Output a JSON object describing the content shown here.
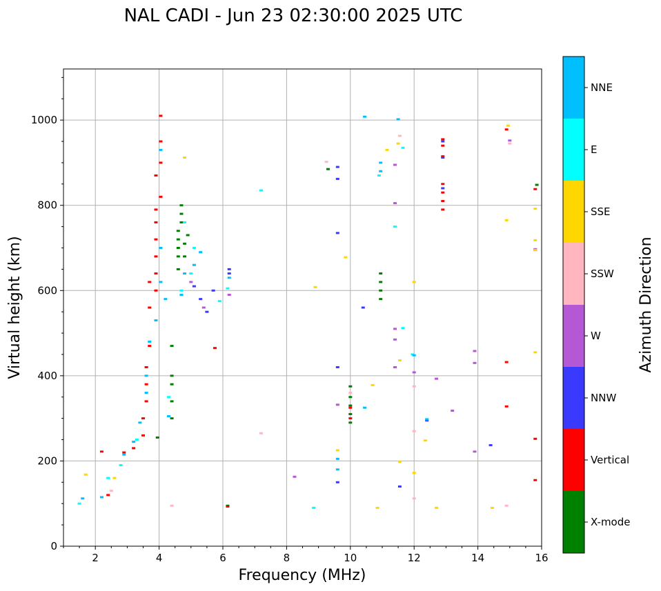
{
  "chart_data": {
    "type": "scatter",
    "title": "NAL CADI - Jun 23 02:30:00 2025 UTC",
    "xlabel": "Frequency (MHz)",
    "ylabel": "Virtual height (km)",
    "xlim": [
      1,
      16
    ],
    "ylim": [
      0,
      1120
    ],
    "x_ticks": [
      2,
      4,
      6,
      8,
      10,
      12,
      14,
      16
    ],
    "y_ticks": [
      0,
      200,
      400,
      600,
      800,
      1000
    ],
    "grid": true,
    "colorbar": {
      "title": "Azimuth Direction",
      "categories": [
        {
          "name": "X-mode",
          "color": "#008000"
        },
        {
          "name": "Vertical",
          "color": "#ff0000"
        },
        {
          "name": "NNW",
          "color": "#3a3aff"
        },
        {
          "name": "W",
          "color": "#b558d6"
        },
        {
          "name": "SSW",
          "color": "#ffb6c1"
        },
        {
          "name": "SSE",
          "color": "#ffd700"
        },
        {
          "name": "E",
          "color": "#00ffff"
        },
        {
          "name": "NNE",
          "color": "#00bfff"
        }
      ]
    },
    "series": [
      {
        "name": "X-mode",
        "points": [
          [
            3.95,
            255
          ],
          [
            4.4,
            300
          ],
          [
            4.4,
            340
          ],
          [
            4.4,
            380
          ],
          [
            4.4,
            400
          ],
          [
            4.4,
            470
          ],
          [
            4.6,
            650
          ],
          [
            4.6,
            680
          ],
          [
            4.6,
            700
          ],
          [
            4.6,
            720
          ],
          [
            4.6,
            740
          ],
          [
            4.7,
            760
          ],
          [
            4.7,
            780
          ],
          [
            4.7,
            800
          ],
          [
            4.8,
            680
          ],
          [
            4.8,
            710
          ],
          [
            4.9,
            730
          ],
          [
            10.0,
            290
          ],
          [
            10.0,
            310
          ],
          [
            10.0,
            330
          ],
          [
            10.0,
            350
          ],
          [
            10.0,
            375
          ],
          [
            10.95,
            580
          ],
          [
            10.95,
            600
          ],
          [
            10.95,
            620
          ],
          [
            10.95,
            640
          ],
          [
            9.3,
            885
          ],
          [
            15.85,
            848
          ],
          [
            6.15,
            95
          ]
        ]
      },
      {
        "name": "Vertical",
        "points": [
          [
            2.4,
            120
          ],
          [
            2.2,
            222
          ],
          [
            2.9,
            220
          ],
          [
            3.2,
            230
          ],
          [
            3.5,
            260
          ],
          [
            3.5,
            300
          ],
          [
            3.6,
            340
          ],
          [
            3.6,
            380
          ],
          [
            3.6,
            420
          ],
          [
            3.7,
            470
          ],
          [
            3.7,
            560
          ],
          [
            3.7,
            620
          ],
          [
            3.9,
            600
          ],
          [
            3.9,
            640
          ],
          [
            3.9,
            680
          ],
          [
            3.9,
            720
          ],
          [
            3.9,
            760
          ],
          [
            3.9,
            790
          ],
          [
            3.9,
            870
          ],
          [
            4.05,
            820
          ],
          [
            4.05,
            900
          ],
          [
            4.05,
            950
          ],
          [
            4.05,
            1010
          ],
          [
            5.75,
            465
          ],
          [
            10.0,
            300
          ],
          [
            10.0,
            325
          ],
          [
            12.9,
            790
          ],
          [
            12.9,
            810
          ],
          [
            12.9,
            830
          ],
          [
            12.9,
            850
          ],
          [
            12.9,
            915
          ],
          [
            12.9,
            940
          ],
          [
            12.9,
            955
          ],
          [
            14.9,
            432
          ],
          [
            14.9,
            328
          ],
          [
            14.9,
            978
          ],
          [
            15.8,
            252
          ],
          [
            15.8,
            155
          ],
          [
            15.8,
            838
          ],
          [
            15.8,
            695
          ],
          [
            6.15,
            93
          ]
        ]
      },
      {
        "name": "NNW",
        "points": [
          [
            5.1,
            610
          ],
          [
            5.3,
            580
          ],
          [
            5.5,
            550
          ],
          [
            5.7,
            600
          ],
          [
            6.2,
            640
          ],
          [
            6.2,
            650
          ],
          [
            9.6,
            890
          ],
          [
            9.6,
            862
          ],
          [
            9.6,
            735
          ],
          [
            9.6,
            420
          ],
          [
            9.6,
            150
          ],
          [
            10.4,
            560
          ],
          [
            12.4,
            295
          ],
          [
            12.9,
            950
          ],
          [
            12.9,
            912
          ],
          [
            12.9,
            840
          ],
          [
            14.4,
            237
          ],
          [
            11.55,
            140
          ]
        ]
      },
      {
        "name": "W",
        "points": [
          [
            5.0,
            620
          ],
          [
            5.4,
            560
          ],
          [
            6.2,
            590
          ],
          [
            9.6,
            332
          ],
          [
            11.4,
            485
          ],
          [
            11.4,
            420
          ],
          [
            11.4,
            510
          ],
          [
            12.0,
            408
          ],
          [
            12.7,
            393
          ],
          [
            13.2,
            318
          ],
          [
            13.9,
            458
          ],
          [
            13.9,
            430
          ],
          [
            13.9,
            222
          ],
          [
            15.0,
            952
          ],
          [
            8.25,
            163
          ],
          [
            11.4,
            895
          ],
          [
            11.4,
            805
          ],
          [
            15.8,
            697
          ]
        ]
      },
      {
        "name": "SSW",
        "points": [
          [
            2.5,
            130
          ],
          [
            4.4,
            95
          ],
          [
            9.25,
            902
          ],
          [
            10.0,
            360
          ],
          [
            11.55,
            963
          ],
          [
            12.0,
            270
          ],
          [
            12.0,
            375
          ],
          [
            12.0,
            112
          ],
          [
            14.9,
            95
          ],
          [
            15.0,
            945
          ],
          [
            7.2,
            265
          ]
        ]
      },
      {
        "name": "SSE",
        "points": [
          [
            1.7,
            168
          ],
          [
            2.6,
            160
          ],
          [
            4.8,
            912
          ],
          [
            8.9,
            608
          ],
          [
            9.85,
            678
          ],
          [
            9.6,
            225
          ],
          [
            10.7,
            378
          ],
          [
            10.85,
            90
          ],
          [
            11.15,
            930
          ],
          [
            11.5,
            945
          ],
          [
            11.55,
            198
          ],
          [
            11.55,
            436
          ],
          [
            12.0,
            172
          ],
          [
            12.0,
            620
          ],
          [
            12.35,
            248
          ],
          [
            12.7,
            90
          ],
          [
            14.45,
            90
          ],
          [
            14.9,
            765
          ],
          [
            14.95,
            987
          ],
          [
            15.8,
            792
          ],
          [
            15.8,
            718
          ],
          [
            15.8,
            455
          ],
          [
            15.8,
            695
          ]
        ]
      },
      {
        "name": "E",
        "points": [
          [
            1.5,
            100
          ],
          [
            2.4,
            160
          ],
          [
            2.8,
            190
          ],
          [
            3.3,
            250
          ],
          [
            4.3,
            350
          ],
          [
            4.7,
            600
          ],
          [
            4.8,
            760
          ],
          [
            5.0,
            640
          ],
          [
            5.1,
            700
          ],
          [
            6.15,
            605
          ],
          [
            7.2,
            835
          ],
          [
            8.85,
            90
          ],
          [
            10.9,
            870
          ],
          [
            11.65,
            935
          ],
          [
            11.65,
            512
          ],
          [
            11.95,
            450
          ],
          [
            11.4,
            750
          ],
          [
            5.9,
            575
          ]
        ]
      },
      {
        "name": "NNE",
        "points": [
          [
            1.6,
            112
          ],
          [
            2.2,
            115
          ],
          [
            2.9,
            215
          ],
          [
            3.2,
            245
          ],
          [
            3.4,
            290
          ],
          [
            3.6,
            360
          ],
          [
            3.6,
            400
          ],
          [
            3.7,
            480
          ],
          [
            3.9,
            530
          ],
          [
            4.05,
            620
          ],
          [
            4.05,
            700
          ],
          [
            4.05,
            930
          ],
          [
            4.2,
            580
          ],
          [
            4.3,
            305
          ],
          [
            4.7,
            590
          ],
          [
            4.8,
            640
          ],
          [
            5.1,
            660
          ],
          [
            5.3,
            690
          ],
          [
            6.2,
            630
          ],
          [
            10.45,
            1008
          ],
          [
            10.95,
            880
          ],
          [
            10.95,
            900
          ],
          [
            10.45,
            325
          ],
          [
            11.5,
            1002
          ],
          [
            12.0,
            448
          ],
          [
            12.4,
            298
          ],
          [
            9.6,
            205
          ],
          [
            9.6,
            180
          ]
        ]
      }
    ]
  }
}
